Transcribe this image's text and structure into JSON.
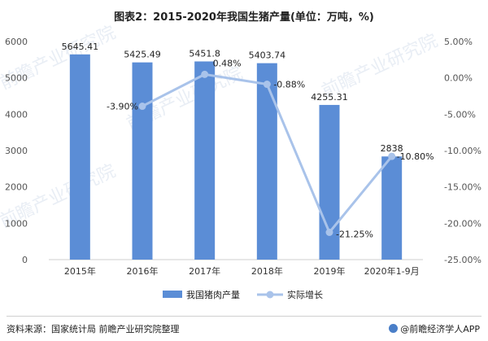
{
  "header": {
    "title": "图表2：2015-2020年我国生猪产量(单位：万吨，%)"
  },
  "footer": {
    "source": "资料来源：国家统计局 前瞻产业研究院整理",
    "brand": "@前瞻经济学人APP"
  },
  "chart_data": {
    "type": "bar",
    "title": "图表2：2015-2020年我国生猪产量(单位：万吨，%)",
    "categories": [
      "2015年",
      "2016年",
      "2017年",
      "2018年",
      "2019年",
      "2020年1-9月"
    ],
    "series": [
      {
        "name": "我国猪肉产量",
        "type": "bar",
        "axis": "left",
        "values": [
          5645.41,
          5425.49,
          5451.8,
          5403.74,
          4255.31,
          2838
        ],
        "labels": [
          "5645.41",
          "5425.49",
          "5451.8",
          "5403.74",
          "4255.31",
          "2838"
        ],
        "color": "#5b8dd6"
      },
      {
        "name": "实际增长",
        "type": "line",
        "axis": "right",
        "values": [
          null,
          -3.9,
          0.48,
          -0.88,
          -21.25,
          -10.8
        ],
        "labels": [
          "",
          "-3.90%",
          "0.48%",
          "-0.88%",
          "-21.25%",
          "-10.80%"
        ],
        "color": "#a9c3ea"
      }
    ],
    "y_left": {
      "min": 0,
      "max": 6000,
      "ticks": [
        "0",
        "1000",
        "2000",
        "3000",
        "4000",
        "5000",
        "6000"
      ]
    },
    "y_right": {
      "min": -25,
      "max": 5,
      "ticks": [
        "5.00%",
        "0.00%",
        "-5.00%",
        "-10.00%",
        "-15.00%",
        "-20.00%",
        "-25.00%"
      ]
    },
    "grid": false,
    "legend": "bottom"
  }
}
